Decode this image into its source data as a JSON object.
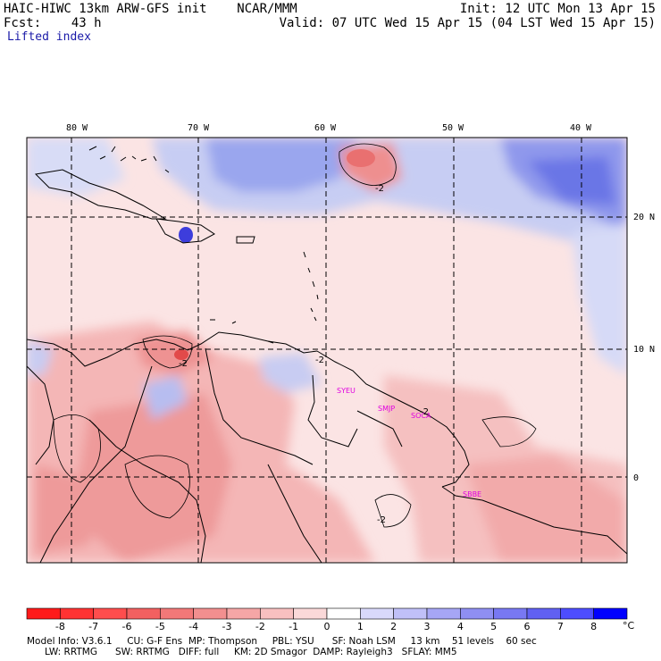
{
  "header": {
    "model_title": "HAIC-HIWC 13km ARW-GFS init    NCAR/MMM",
    "init": "Init: 12 UTC Mon 13 Apr 15",
    "fcst": "Fcst:    43 h",
    "valid": "Valid: 07 UTC Wed 15 Apr 15 (04 LST Wed 15 Apr 15)",
    "field": "Lifted index"
  },
  "map": {
    "lon_labels": [
      "80 W",
      "70 W",
      "60 W",
      "50 W",
      "40 W"
    ],
    "lat_labels": [
      "20 N",
      "10 N",
      "0"
    ],
    "stations": [
      "SYEU",
      "SMJP",
      "SOCA",
      "SBBE"
    ],
    "contour_labels": [
      "-2",
      "-2",
      "-2",
      "-2",
      "-2"
    ]
  },
  "colorbar": {
    "ticks": [
      "-8",
      "-7",
      "-6",
      "-5",
      "-4",
      "-3",
      "-2",
      "-1",
      "0",
      "1",
      "2",
      "3",
      "4",
      "5",
      "6",
      "7",
      "8"
    ],
    "unit": "°C",
    "colors": [
      "#ff1a1a",
      "#ff3333",
      "#ff4d4d",
      "#f26060",
      "#f27878",
      "#f28f8f",
      "#f5a6a6",
      "#f8c0c0",
      "#fbd9d9",
      "#ffffff",
      "#d9d9fb",
      "#c0c0f8",
      "#a6a6f5",
      "#8f8ff2",
      "#7878f2",
      "#6060f2",
      "#4d4dff",
      "#0000ff"
    ]
  },
  "model_info": {
    "line1": "Model Info: V3.6.1     CU: G-F Ens  MP: Thompson     PBL: YSU      SF: Noah LSM     13 km    51 levels    60 sec",
    "line2": "      LW: RRTMG      SW: RRTMG   DIFF: full     KM: 2D Smagor  DAMP: Rayleigh3   SFLAY: MM5"
  }
}
